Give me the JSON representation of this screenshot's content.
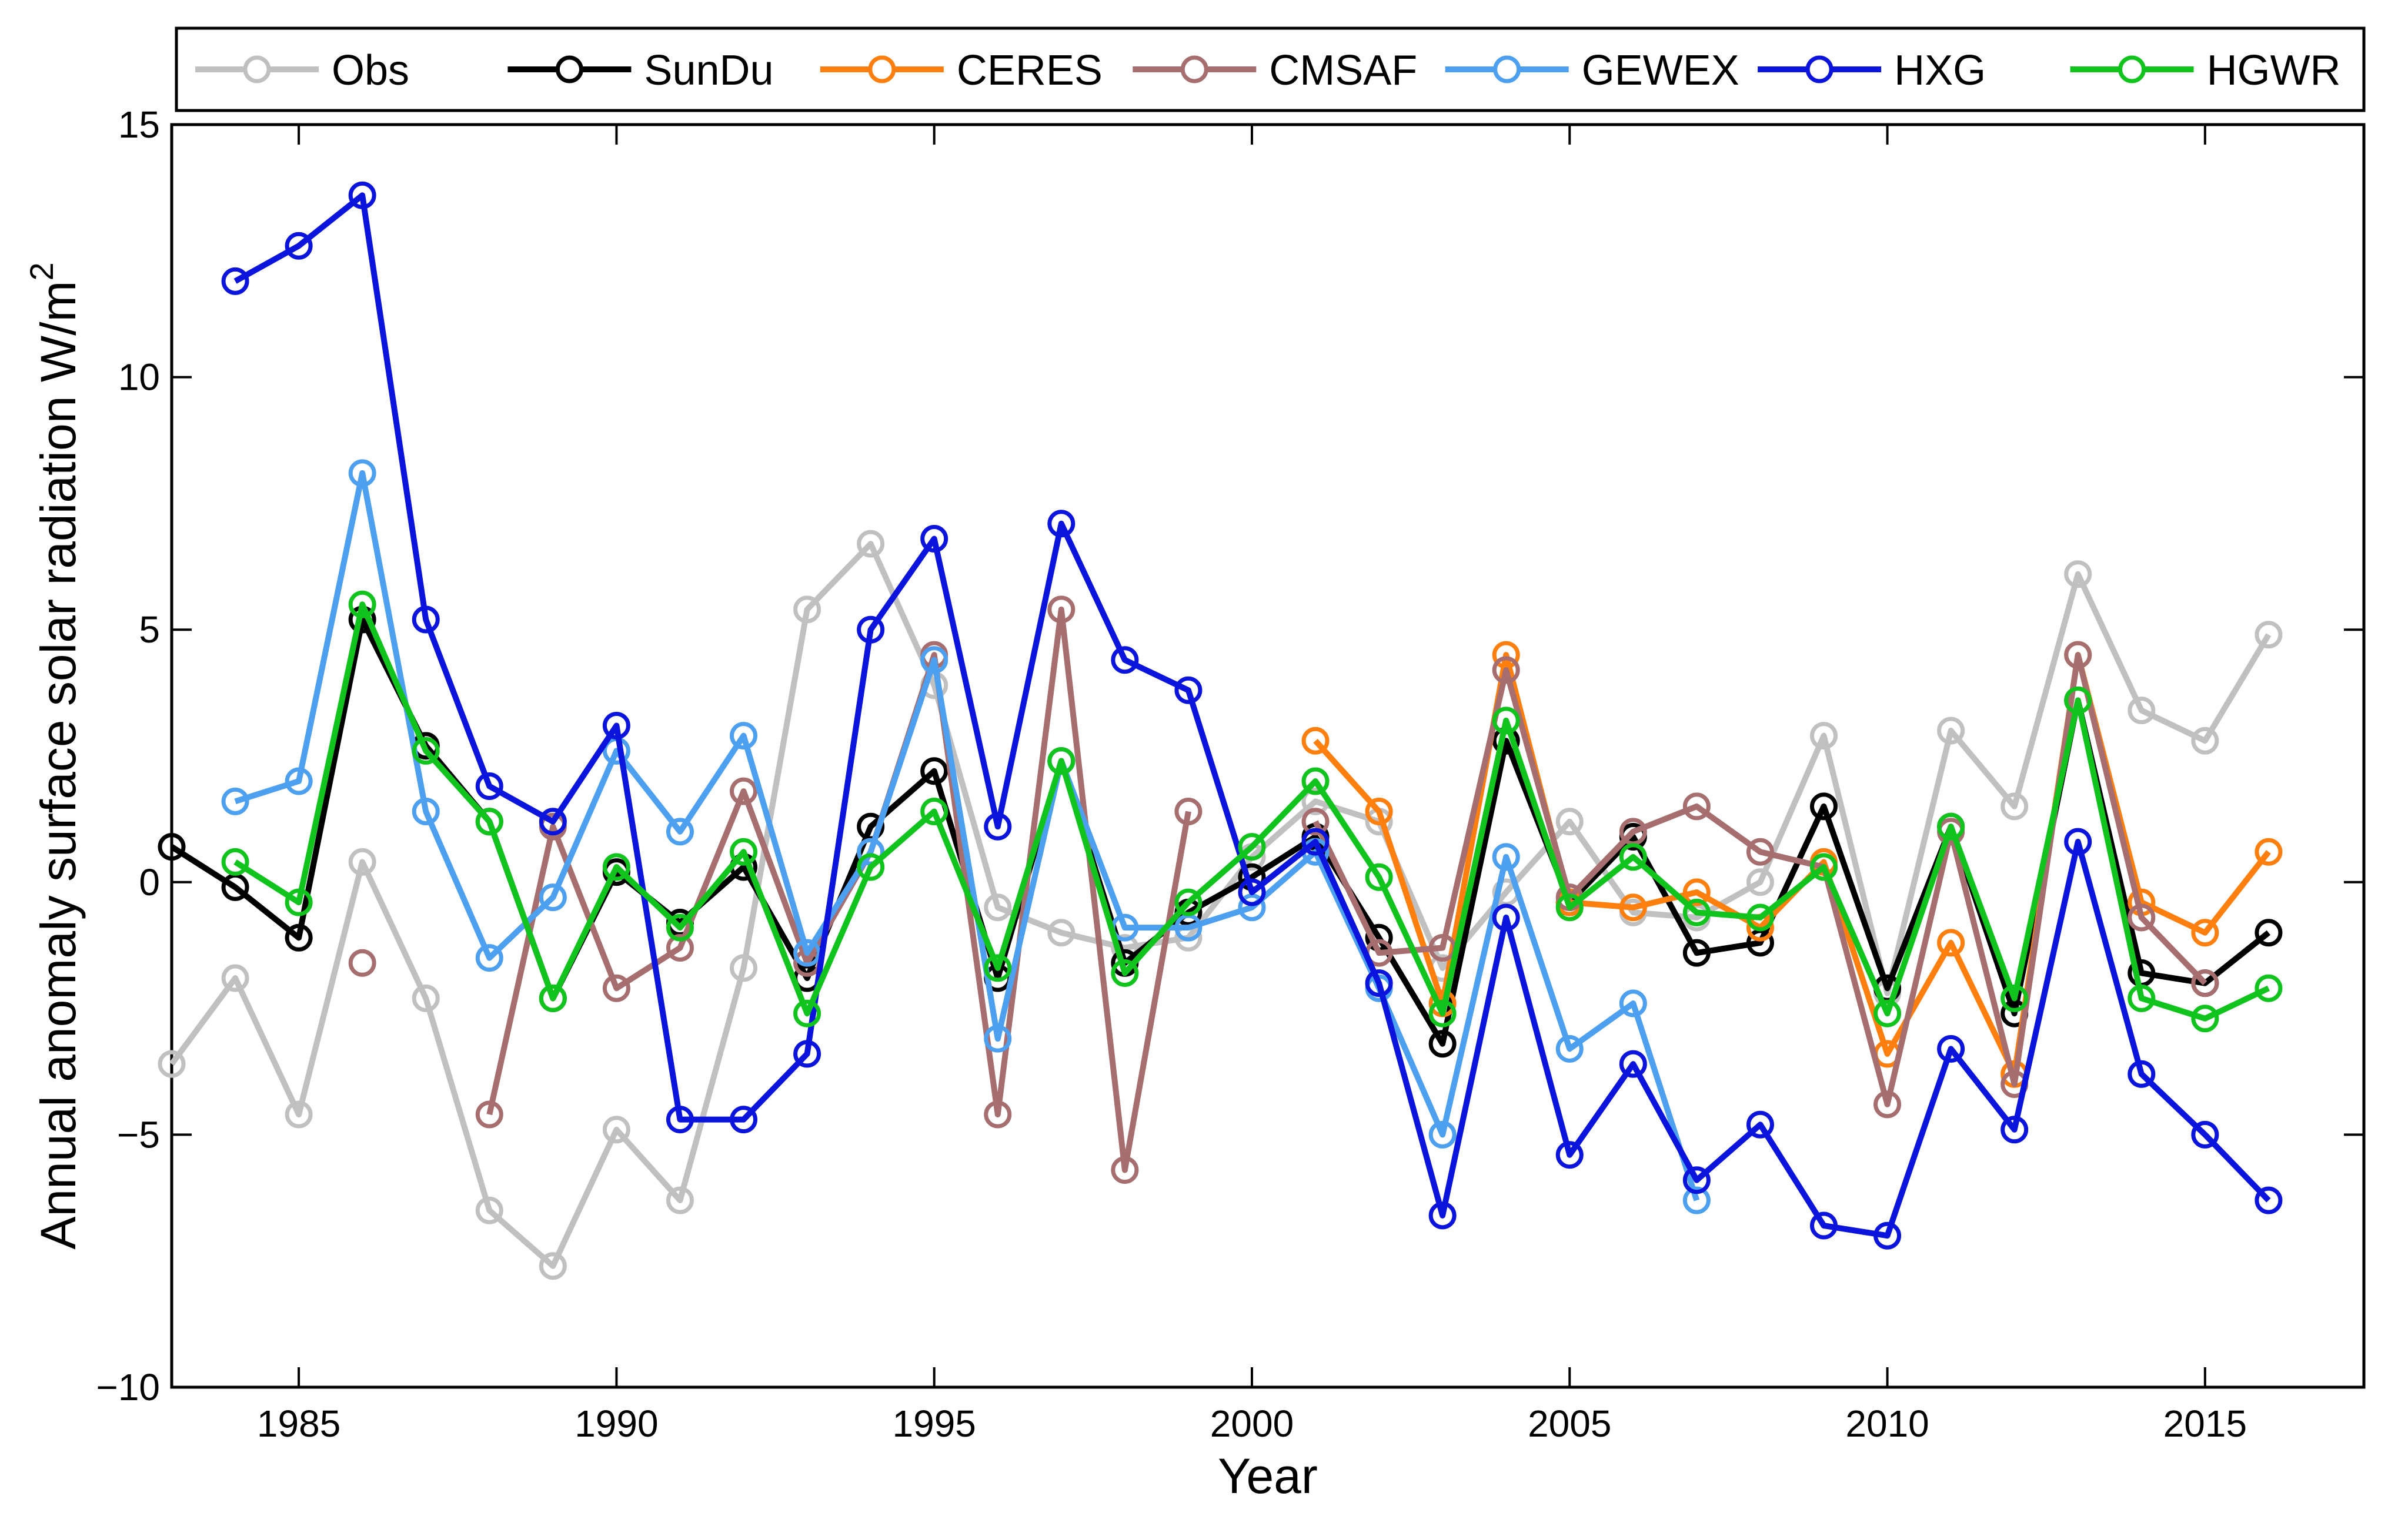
{
  "chart_data": {
    "type": "line",
    "title": "",
    "xlabel": "Year",
    "ylabel": "Annual anomaly surface solar radiation W/m",
    "ylabel_superscript": "2",
    "xlim": [
      1983,
      2017.5
    ],
    "ylim": [
      -10,
      15
    ],
    "xticks": [
      1985,
      1990,
      1995,
      2000,
      2005,
      2010,
      2015
    ],
    "yticks": [
      -10,
      -5,
      0,
      5,
      10,
      15
    ],
    "legend_position": "top",
    "series": [
      {
        "name": "Obs",
        "color": "#c0c0c0",
        "points": [
          [
            1983,
            -3.6
          ],
          [
            1984,
            -1.9
          ],
          [
            1985,
            -4.6
          ],
          [
            1986,
            0.4
          ],
          [
            1987,
            -2.3
          ],
          [
            1988,
            -6.5
          ],
          [
            1989,
            -7.6
          ],
          [
            1990,
            -4.9
          ],
          [
            1991,
            -6.3
          ],
          [
            1992,
            -1.7
          ],
          [
            1993,
            5.4
          ],
          [
            1994,
            6.7
          ],
          [
            1995,
            3.9
          ],
          [
            1996,
            -0.5
          ],
          [
            1997,
            -1.0
          ],
          [
            1998,
            -1.3
          ],
          [
            1999,
            -1.1
          ],
          [
            2000,
            0.5
          ],
          [
            2001,
            1.6
          ],
          [
            2002,
            1.2
          ],
          [
            2003,
            -1.7
          ],
          [
            2004,
            -0.2
          ],
          [
            2005,
            1.2
          ],
          [
            2006,
            -0.6
          ],
          [
            2007,
            -0.7
          ],
          [
            2008,
            0.0
          ],
          [
            2009,
            2.9
          ],
          [
            2010,
            -2.2
          ],
          [
            2011,
            3.0
          ],
          [
            2012,
            1.5
          ],
          [
            2013,
            6.1
          ],
          [
            2014,
            3.4
          ],
          [
            2015,
            2.8
          ],
          [
            2016,
            4.9
          ]
        ]
      },
      {
        "name": "SunDu",
        "color": "#000000",
        "points": [
          [
            1983,
            0.7
          ],
          [
            1984,
            -0.1
          ],
          [
            1985,
            -1.1
          ],
          [
            1986,
            5.2
          ],
          [
            1987,
            2.7
          ],
          [
            1988,
            1.2
          ],
          [
            1989,
            -2.3
          ],
          [
            1990,
            0.2
          ],
          [
            1991,
            -0.8
          ],
          [
            1992,
            0.3
          ],
          [
            1993,
            -1.9
          ],
          [
            1994,
            1.1
          ],
          [
            1995,
            2.2
          ],
          [
            1996,
            -1.9
          ],
          [
            1997,
            2.4
          ],
          [
            1998,
            -1.6
          ],
          [
            1999,
            -0.6
          ],
          [
            2000,
            0.1
          ],
          [
            2001,
            0.9
          ],
          [
            2002,
            -1.1
          ],
          [
            2003,
            -3.2
          ],
          [
            2004,
            2.8
          ],
          [
            2005,
            -0.4
          ],
          [
            2006,
            0.9
          ],
          [
            2007,
            -1.4
          ],
          [
            2008,
            -1.2
          ],
          [
            2009,
            1.5
          ],
          [
            2010,
            -2.1
          ],
          [
            2011,
            1.1
          ],
          [
            2012,
            -2.6
          ],
          [
            2013,
            3.6
          ],
          [
            2014,
            -1.8
          ],
          [
            2015,
            -2.0
          ],
          [
            2016,
            -1.0
          ]
        ]
      },
      {
        "name": "CERES",
        "color": "#ff7f0e",
        "points": [
          [
            2001,
            2.8
          ],
          [
            2002,
            1.4
          ],
          [
            2003,
            -2.4
          ],
          [
            2004,
            4.5
          ],
          [
            2005,
            -0.4
          ],
          [
            2006,
            -0.5
          ],
          [
            2007,
            -0.2
          ],
          [
            2008,
            -0.9
          ],
          [
            2009,
            0.4
          ],
          [
            2010,
            -3.4
          ],
          [
            2011,
            -1.2
          ],
          [
            2012,
            -3.8
          ],
          [
            2013,
            4.5
          ],
          [
            2014,
            -0.4
          ],
          [
            2015,
            -1.0
          ],
          [
            2016,
            0.6
          ]
        ]
      },
      {
        "name": "CMSAF",
        "color": "#a66e6e",
        "points": [
          [
            1986,
            -1.6
          ],
          [
            1987,
            null
          ],
          [
            1988,
            -4.6
          ],
          [
            1989,
            1.1
          ],
          [
            1990,
            -2.1
          ],
          [
            1991,
            -1.3
          ],
          [
            1992,
            1.8
          ],
          [
            1993,
            -1.6
          ],
          [
            1994,
            0.6
          ],
          [
            1995,
            4.5
          ],
          [
            1996,
            -4.6
          ],
          [
            1997,
            5.4
          ],
          [
            1998,
            -5.7
          ],
          [
            1999,
            1.4
          ],
          [
            2000,
            null
          ],
          [
            2001,
            1.2
          ],
          [
            2002,
            -1.4
          ],
          [
            2003,
            -1.3
          ],
          [
            2004,
            4.2
          ],
          [
            2005,
            -0.3
          ],
          [
            2006,
            1.0
          ],
          [
            2007,
            1.5
          ],
          [
            2008,
            0.6
          ],
          [
            2009,
            0.3
          ],
          [
            2010,
            -4.4
          ],
          [
            2011,
            1.0
          ],
          [
            2012,
            -4.0
          ],
          [
            2013,
            4.5
          ],
          [
            2014,
            -0.7
          ],
          [
            2015,
            -2.0
          ]
        ]
      },
      {
        "name": "GEWEX",
        "color": "#4d9fef",
        "points": [
          [
            1984,
            1.6
          ],
          [
            1985,
            2.0
          ],
          [
            1986,
            8.1
          ],
          [
            1987,
            1.4
          ],
          [
            1988,
            -1.5
          ],
          [
            1989,
            -0.3
          ],
          [
            1990,
            2.6
          ],
          [
            1991,
            1.0
          ],
          [
            1992,
            2.9
          ],
          [
            1993,
            -1.4
          ],
          [
            1994,
            0.6
          ],
          [
            1995,
            4.4
          ],
          [
            1996,
            -3.1
          ],
          [
            1997,
            2.4
          ],
          [
            1998,
            -0.9
          ],
          [
            1999,
            -0.9
          ],
          [
            2000,
            -0.5
          ],
          [
            2001,
            0.6
          ],
          [
            2002,
            -2.1
          ],
          [
            2003,
            -5.0
          ],
          [
            2004,
            0.5
          ],
          [
            2005,
            -3.3
          ],
          [
            2006,
            -2.4
          ],
          [
            2007,
            -6.3
          ]
        ]
      },
      {
        "name": "HXG",
        "color": "#0a14dc",
        "points": [
          [
            1984,
            11.9
          ],
          [
            1985,
            12.6
          ],
          [
            1986,
            13.6
          ],
          [
            1987,
            5.2
          ],
          [
            1988,
            1.9
          ],
          [
            1989,
            1.2
          ],
          [
            1990,
            3.1
          ],
          [
            1991,
            -4.7
          ],
          [
            1992,
            -4.7
          ],
          [
            1993,
            -3.4
          ],
          [
            1994,
            5.0
          ],
          [
            1995,
            6.8
          ],
          [
            1996,
            1.1
          ],
          [
            1997,
            7.1
          ],
          [
            1998,
            4.4
          ],
          [
            1999,
            3.8
          ],
          [
            2000,
            -0.2
          ],
          [
            2001,
            0.8
          ],
          [
            2002,
            -2.0
          ],
          [
            2003,
            -6.6
          ],
          [
            2004,
            -0.7
          ],
          [
            2005,
            -5.4
          ],
          [
            2006,
            -3.6
          ],
          [
            2007,
            -5.9
          ],
          [
            2008,
            -4.8
          ],
          [
            2009,
            -6.8
          ],
          [
            2010,
            -7.0
          ],
          [
            2011,
            -3.3
          ],
          [
            2012,
            -4.9
          ],
          [
            2013,
            0.8
          ],
          [
            2014,
            -3.8
          ],
          [
            2015,
            -5.0
          ],
          [
            2016,
            -6.3
          ]
        ]
      },
      {
        "name": "HGWR",
        "color": "#11c41d",
        "points": [
          [
            1984,
            0.4
          ],
          [
            1985,
            -0.4
          ],
          [
            1986,
            5.5
          ],
          [
            1987,
            2.6
          ],
          [
            1988,
            1.2
          ],
          [
            1989,
            -2.3
          ],
          [
            1990,
            0.3
          ],
          [
            1991,
            -0.9
          ],
          [
            1992,
            0.6
          ],
          [
            1993,
            -2.6
          ],
          [
            1994,
            0.3
          ],
          [
            1995,
            1.4
          ],
          [
            1996,
            -1.7
          ],
          [
            1997,
            2.4
          ],
          [
            1998,
            -1.8
          ],
          [
            1999,
            -0.4
          ],
          [
            2000,
            0.7
          ],
          [
            2001,
            2.0
          ],
          [
            2002,
            0.1
          ],
          [
            2003,
            -2.6
          ],
          [
            2004,
            3.2
          ],
          [
            2005,
            -0.5
          ],
          [
            2006,
            0.5
          ],
          [
            2007,
            -0.6
          ],
          [
            2008,
            -0.7
          ],
          [
            2009,
            0.3
          ],
          [
            2010,
            -2.6
          ],
          [
            2011,
            1.1
          ],
          [
            2012,
            -2.3
          ],
          [
            2013,
            3.6
          ],
          [
            2014,
            -2.3
          ],
          [
            2015,
            -2.7
          ],
          [
            2016,
            -2.1
          ]
        ]
      }
    ]
  }
}
